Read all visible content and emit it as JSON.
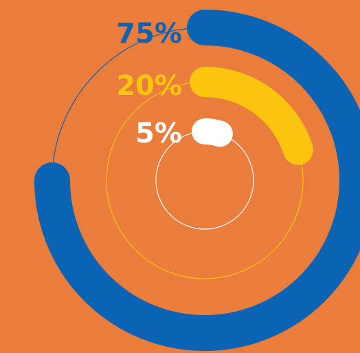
{
  "chart_data": {
    "type": "radial-bar",
    "title": "",
    "series": [
      {
        "label": "75%",
        "value": 75,
        "color": "#0B63B3"
      },
      {
        "label": "20%",
        "value": 20,
        "color": "#FBC40E"
      },
      {
        "label": "5%",
        "value": 5,
        "color": "#FFFFFF"
      }
    ],
    "max": 100,
    "background": "#EB7D3C"
  }
}
